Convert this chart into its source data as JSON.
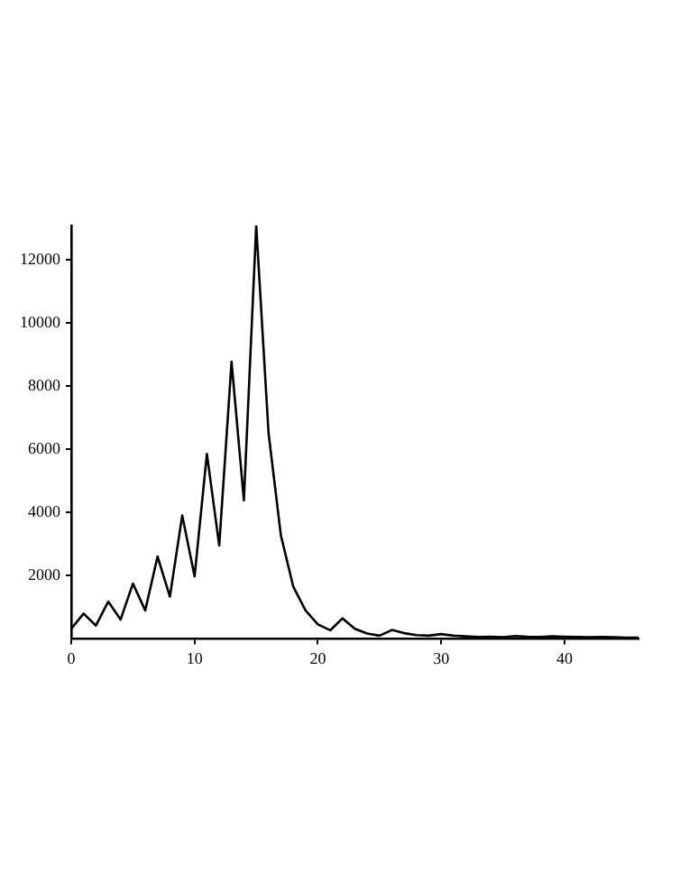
{
  "chart_data": {
    "type": "line",
    "x": [
      0,
      1,
      2,
      3,
      4,
      5,
      6,
      7,
      8,
      9,
      10,
      11,
      12,
      13,
      14,
      15,
      16,
      17,
      18,
      19,
      20,
      21,
      22,
      23,
      24,
      25,
      26,
      27,
      28,
      29,
      30,
      31,
      32,
      33,
      34,
      35,
      36,
      37,
      38,
      39,
      40,
      41,
      42,
      43,
      44,
      45,
      46
    ],
    "series": [
      {
        "color": "#000000",
        "values": [
          320,
          800,
          420,
          1180,
          610,
          1750,
          900,
          2610,
          1340,
          3910,
          1980,
          5860,
          2960,
          8780,
          4390,
          13100,
          6520,
          3280,
          1660,
          900,
          460,
          270,
          650,
          320,
          170,
          100,
          280,
          180,
          120,
          100,
          150,
          100,
          80,
          60,
          70,
          50,
          90,
          70,
          60,
          80,
          70,
          60,
          50,
          60,
          50,
          40,
          40
        ]
      }
    ],
    "xlim": [
      0,
      46
    ],
    "xticks": [
      0,
      10,
      20,
      30,
      40
    ],
    "ylim": [
      0,
      13100
    ],
    "yticks": [
      2000,
      4000,
      6000,
      8000,
      10000,
      12000
    ],
    "grid": false,
    "legend": false,
    "marker": "none",
    "line_style": "solid"
  }
}
